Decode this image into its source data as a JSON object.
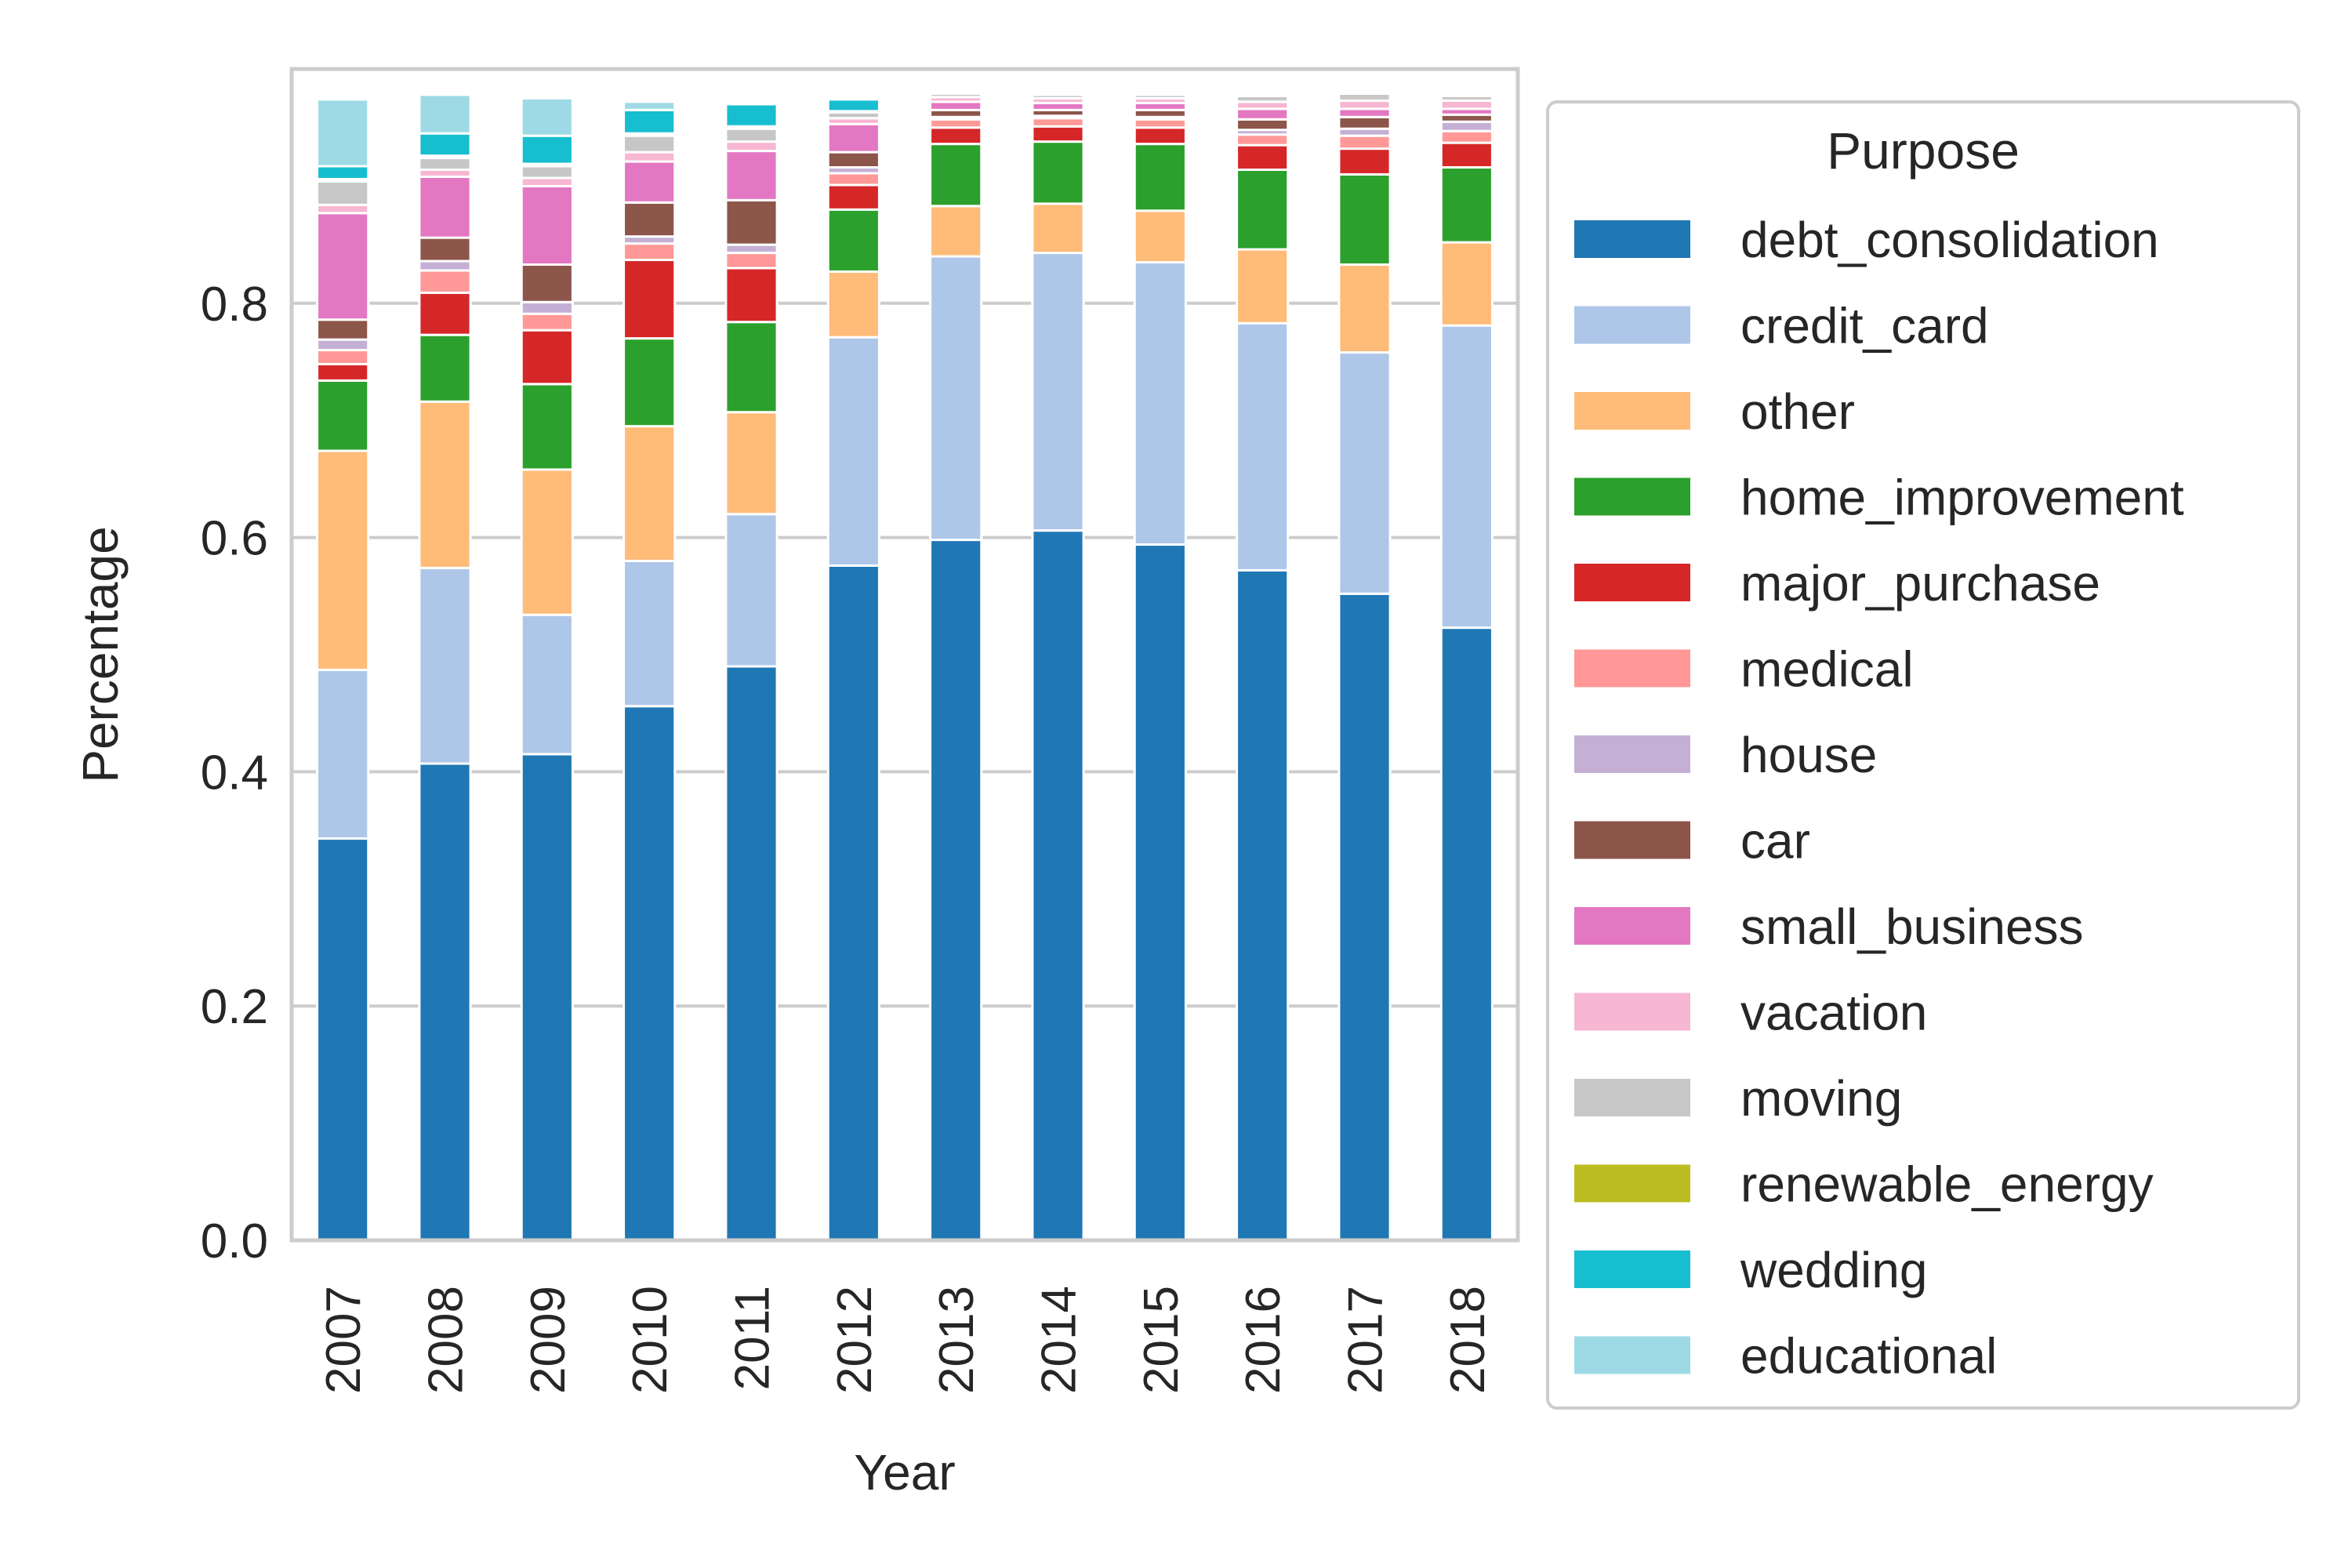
{
  "chart_data": {
    "type": "bar",
    "stacked": true,
    "title": "",
    "xlabel": "Year",
    "ylabel": "Percentage",
    "ylim": [
      0,
      1.0
    ],
    "yticks": [
      0.0,
      0.2,
      0.4,
      0.6,
      0.8
    ],
    "ytick_labels": [
      "0.0",
      "0.2",
      "0.4",
      "0.6",
      "0.8"
    ],
    "grid": "y",
    "legend": {
      "title": "Purpose",
      "placement": "outside-right"
    },
    "categories": [
      "2007",
      "2008",
      "2009",
      "2010",
      "2011",
      "2012",
      "2013",
      "2014",
      "2015",
      "2016",
      "2017",
      "2018"
    ],
    "series": [
      {
        "name": "debt_consolidation",
        "color": "#1f77b4",
        "values": [
          0.343,
          0.407,
          0.415,
          0.456,
          0.49,
          0.576,
          0.598,
          0.606,
          0.594,
          0.572,
          0.552,
          0.523
        ]
      },
      {
        "name": "credit_card",
        "color": "#aec7e8",
        "values": [
          0.144,
          0.167,
          0.119,
          0.124,
          0.13,
          0.195,
          0.242,
          0.237,
          0.241,
          0.211,
          0.206,
          0.258
        ]
      },
      {
        "name": "other",
        "color": "#ffbb78",
        "values": [
          0.187,
          0.142,
          0.124,
          0.115,
          0.087,
          0.056,
          0.043,
          0.042,
          0.044,
          0.063,
          0.075,
          0.071
        ]
      },
      {
        "name": "home_improvement",
        "color": "#2ca02c",
        "values": [
          0.06,
          0.057,
          0.073,
          0.075,
          0.077,
          0.053,
          0.053,
          0.053,
          0.057,
          0.068,
          0.077,
          0.064
        ]
      },
      {
        "name": "major_purchase",
        "color": "#d62728",
        "values": [
          0.014,
          0.036,
          0.046,
          0.067,
          0.046,
          0.021,
          0.014,
          0.013,
          0.014,
          0.021,
          0.022,
          0.021
        ]
      },
      {
        "name": "medical",
        "color": "#ff9896",
        "values": [
          0.012,
          0.019,
          0.014,
          0.014,
          0.013,
          0.01,
          0.007,
          0.007,
          0.007,
          0.009,
          0.011,
          0.01
        ]
      },
      {
        "name": "house",
        "color": "#c5b0d5",
        "values": [
          0.009,
          0.008,
          0.01,
          0.006,
          0.007,
          0.005,
          0.002,
          0.002,
          0.002,
          0.004,
          0.006,
          0.008
        ]
      },
      {
        "name": "car",
        "color": "#8c564b",
        "values": [
          0.017,
          0.02,
          0.032,
          0.029,
          0.038,
          0.013,
          0.006,
          0.005,
          0.006,
          0.009,
          0.01,
          0.006
        ]
      },
      {
        "name": "small_business",
        "color": "#e377c2",
        "values": [
          0.091,
          0.052,
          0.067,
          0.035,
          0.042,
          0.024,
          0.007,
          0.006,
          0.006,
          0.009,
          0.007,
          0.005
        ]
      },
      {
        "name": "vacation",
        "color": "#f7b6d2",
        "values": [
          0.007,
          0.006,
          0.007,
          0.008,
          0.008,
          0.005,
          0.004,
          0.004,
          0.004,
          0.006,
          0.007,
          0.007
        ]
      },
      {
        "name": "moving",
        "color": "#c7c7c7",
        "values": [
          0.02,
          0.01,
          0.01,
          0.014,
          0.011,
          0.005,
          0.003,
          0.003,
          0.003,
          0.005,
          0.006,
          0.004
        ]
      },
      {
        "name": "renewable_energy",
        "color": "#bcbd22",
        "values": [
          0.002,
          0.002,
          0.002,
          0.002,
          0.002,
          0.001,
          0.001,
          0.001,
          0.001,
          0.001,
          0.001,
          0.001
        ]
      },
      {
        "name": "wedding",
        "color": "#17becf",
        "values": [
          0.011,
          0.019,
          0.024,
          0.02,
          0.019,
          0.01,
          0.0,
          0.0,
          0.0,
          0.0,
          0.0,
          0.0
        ]
      },
      {
        "name": "educational",
        "color": "#9edae5",
        "values": [
          0.057,
          0.033,
          0.032,
          0.007,
          0.002,
          0.0,
          0.0,
          0.0,
          0.0,
          0.0,
          0.0,
          0.0
        ]
      }
    ]
  }
}
